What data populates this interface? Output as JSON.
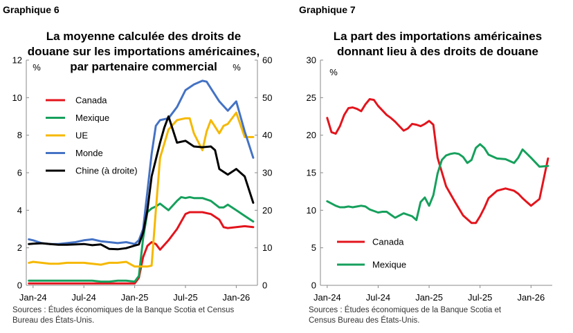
{
  "colors": {
    "canada": "#e3141c",
    "mexique": "#16a05c",
    "ue": "#f5b800",
    "monde": "#4472c4",
    "chine": "#000000",
    "axis": "#888888"
  },
  "chart_data": [
    {
      "type": "line",
      "label": "Graphique 6",
      "title_lines": [
        "La moyenne calculée des droits de",
        "douane sur les importations américaines,",
        "par partenaire commercial"
      ],
      "ylabel_left": "%",
      "ylabel_right": "%",
      "xticks": [
        "Jan-24",
        "Jul-24",
        "Jan-25",
        "Jul-25",
        "Jan-26"
      ],
      "xtick_months": [
        0,
        6,
        12,
        18,
        24
      ],
      "xlim": [
        -0.8,
        26.5
      ],
      "yticks_left": [
        "0",
        "2",
        "4",
        "6",
        "8",
        "10",
        "12"
      ],
      "yticks_right": [
        "0",
        "10",
        "20",
        "30",
        "40",
        "50",
        "60"
      ],
      "ylim_left": [
        0,
        12
      ],
      "ylim_right": [
        0,
        60
      ],
      "source": [
        "Sources : Études économiques de la Banque Scotia et Census",
        "Bureau des États-Unis."
      ],
      "series": [
        {
          "name": "Canada",
          "color_key": "canada",
          "axis": "left",
          "x": [
            -0.5,
            0,
            1,
            2,
            3,
            4,
            5,
            6,
            7,
            8,
            9,
            10,
            11,
            12,
            12.5,
            13,
            13.5,
            14,
            14.5,
            15,
            16,
            17,
            18,
            18.5,
            19,
            20,
            21,
            22,
            22.5,
            23,
            24,
            25,
            26
          ],
          "y": [
            0.1,
            0.1,
            0.1,
            0.1,
            0.1,
            0.1,
            0.1,
            0.1,
            0.1,
            0.1,
            0.1,
            0.1,
            0.1,
            0.1,
            0.4,
            1.5,
            2.1,
            2.3,
            2.2,
            1.9,
            2.4,
            3.0,
            3.8,
            3.9,
            3.9,
            3.9,
            3.8,
            3.5,
            3.1,
            3.05,
            3.1,
            3.15,
            3.1
          ]
        },
        {
          "name": "Mexique",
          "color_key": "mexique",
          "axis": "left",
          "x": [
            -0.5,
            0,
            1,
            2,
            3,
            4,
            5,
            6,
            7,
            8,
            9,
            10,
            11,
            12,
            12.5,
            13,
            13.5,
            14,
            14.5,
            15,
            16,
            17,
            17.5,
            18,
            18.5,
            19,
            20,
            21,
            22,
            22.5,
            23,
            24,
            25,
            26
          ],
          "y": [
            0.25,
            0.25,
            0.25,
            0.25,
            0.25,
            0.25,
            0.25,
            0.25,
            0.25,
            0.2,
            0.2,
            0.25,
            0.25,
            0.2,
            0.5,
            2.5,
            3.9,
            4.1,
            4.2,
            4.35,
            4.0,
            4.5,
            4.7,
            4.65,
            4.7,
            4.65,
            4.65,
            4.5,
            4.15,
            4.15,
            4.3,
            4.0,
            3.7,
            3.4
          ]
        },
        {
          "name": "UE",
          "color_key": "ue",
          "axis": "left",
          "x": [
            -0.5,
            0,
            1,
            2,
            3,
            4,
            5,
            6,
            7,
            8,
            9,
            10,
            11,
            12,
            12.5,
            13,
            13.5,
            14,
            14.5,
            15,
            16,
            17,
            18,
            18.5,
            19,
            20,
            20.5,
            21,
            22,
            22.5,
            23,
            24,
            25,
            26
          ],
          "y": [
            1.2,
            1.25,
            1.2,
            1.15,
            1.15,
            1.2,
            1.2,
            1.2,
            1.15,
            1.1,
            1.2,
            1.2,
            1.25,
            1.0,
            1.0,
            1.0,
            1.0,
            1.05,
            4.0,
            6.8,
            8.3,
            8.8,
            8.9,
            8.9,
            8.1,
            7.2,
            8.2,
            8.8,
            8.1,
            8.5,
            8.6,
            9.2,
            7.9,
            7.9
          ]
        },
        {
          "name": "Monde",
          "color_key": "monde",
          "axis": "left",
          "x": [
            -0.5,
            0,
            1,
            2,
            3,
            4,
            5,
            6,
            7,
            8,
            9,
            10,
            11,
            12,
            12.5,
            13,
            13.5,
            14,
            14.5,
            15,
            16,
            17,
            18,
            19,
            20,
            20.5,
            21,
            22,
            23,
            24,
            25,
            26
          ],
          "y": [
            2.45,
            2.4,
            2.25,
            2.2,
            2.2,
            2.25,
            2.3,
            2.4,
            2.45,
            2.35,
            2.3,
            2.25,
            2.3,
            2.2,
            2.4,
            3.0,
            5.0,
            7.0,
            8.5,
            8.8,
            8.9,
            9.5,
            10.4,
            10.7,
            10.9,
            10.85,
            10.5,
            9.8,
            9.3,
            9.8,
            8.2,
            6.8
          ]
        },
        {
          "name": "Chine (à droite)",
          "color_key": "chine",
          "axis": "right",
          "x": [
            -0.5,
            0,
            1,
            2,
            3,
            4,
            5,
            6,
            7,
            8,
            9,
            10,
            11,
            12,
            12.5,
            13,
            13.5,
            14,
            15,
            15.5,
            16,
            17,
            18,
            19,
            20,
            21,
            21.5,
            22,
            23,
            24,
            25,
            26
          ],
          "y": [
            11,
            11.1,
            11.2,
            11.0,
            10.8,
            10.8,
            10.9,
            11.0,
            10.7,
            10.9,
            9.7,
            9.6,
            9.9,
            10.6,
            10.9,
            14,
            20,
            29,
            38,
            42,
            45,
            38,
            38.5,
            37,
            36.8,
            37,
            36,
            31,
            29.5,
            31,
            29,
            22
          ]
        }
      ]
    },
    {
      "type": "line",
      "label": "Graphique 7",
      "title_lines": [
        "La part des importations américaines",
        "donnant lieu à des droits de douane"
      ],
      "ylabel": "%",
      "xticks": [
        "Jan-24",
        "Jul-24",
        "Jan-25",
        "Jul-25",
        "Jan-26"
      ],
      "xtick_months": [
        0,
        6,
        12,
        18,
        24
      ],
      "xlim": [
        -0.8,
        26.5
      ],
      "yticks": [
        "0",
        "5",
        "10",
        "15",
        "20",
        "25",
        "30"
      ],
      "ylim": [
        0,
        30
      ],
      "source": [
        "Sources : Études économiques de la Banque Scotia et",
        "Census Bureau des États-Unis."
      ],
      "series": [
        {
          "name": "Canada",
          "color_key": "canada",
          "x": [
            0,
            0.5,
            1,
            1.5,
            2,
            2.5,
            3,
            3.5,
            4,
            4.5,
            5,
            5.5,
            6,
            6.5,
            7,
            7.5,
            8,
            8.5,
            9,
            9.5,
            10,
            10.5,
            11,
            11.5,
            12,
            12.5,
            13,
            14,
            15,
            16,
            17,
            17.5,
            18,
            18.5,
            19,
            20,
            21,
            22,
            22.5,
            23,
            24,
            25,
            26
          ],
          "y": [
            22.3,
            20.4,
            20.2,
            21.2,
            22.7,
            23.6,
            23.7,
            23.5,
            23.2,
            24.1,
            24.8,
            24.7,
            23.9,
            23.3,
            22.7,
            22.3,
            21.8,
            21.2,
            20.6,
            20.9,
            21.5,
            21.4,
            21.2,
            21.5,
            21.9,
            21.4,
            17.0,
            13.2,
            11.2,
            9.3,
            8.3,
            8.3,
            9.2,
            10.3,
            11.6,
            12.6,
            12.9,
            12.6,
            12.2,
            11.6,
            10.6,
            11.5,
            16.9
          ]
        },
        {
          "name": "Mexique",
          "color_key": "mexique",
          "x": [
            0,
            0.5,
            1,
            1.5,
            2,
            2.5,
            3,
            3.5,
            4,
            4.5,
            5,
            5.5,
            6,
            6.5,
            7,
            7.5,
            8,
            8.5,
            9,
            9.5,
            10,
            10.5,
            11,
            11.5,
            12,
            12.5,
            13,
            13.5,
            14,
            14.5,
            15,
            15.5,
            16,
            16.5,
            17,
            17.5,
            18,
            18.5,
            19,
            20,
            21,
            22,
            22.5,
            23,
            24,
            25,
            26
          ],
          "y": [
            11.2,
            10.9,
            10.6,
            10.4,
            10.4,
            10.5,
            10.4,
            10.5,
            10.6,
            10.5,
            10.1,
            9.9,
            9.7,
            9.8,
            9.8,
            9.4,
            9.0,
            9.3,
            9.6,
            9.4,
            9.2,
            8.7,
            11.1,
            11.7,
            10.6,
            12.0,
            14.9,
            16.7,
            17.3,
            17.5,
            17.6,
            17.5,
            17.1,
            16.3,
            16.7,
            18.3,
            18.8,
            18.3,
            17.4,
            16.9,
            16.8,
            16.3,
            17.0,
            18.1,
            17.0,
            15.8,
            15.9
          ]
        }
      ]
    }
  ]
}
